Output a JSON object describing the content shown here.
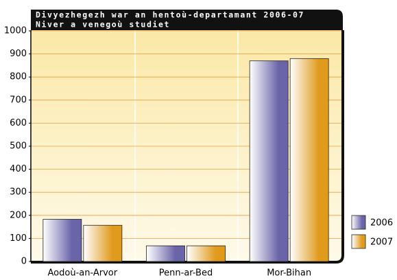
{
  "chart_data": {
    "type": "bar",
    "title": "Divyezhegezh war an hentoù-departamant 2006-07",
    "subtitle": "Niver a venegoù studiet",
    "categories": [
      "Aodoù-an-Arvor",
      "Penn-ar-Bed",
      "Mor-Bihan"
    ],
    "series": [
      {
        "name": "2006",
        "color": "#6a64a8",
        "values": [
          183,
          68,
          870
        ]
      },
      {
        "name": "2007",
        "color": "#e09a1c",
        "values": [
          157,
          68,
          880
        ]
      }
    ],
    "ylim": [
      0,
      1000
    ],
    "yticks": [
      0,
      100,
      200,
      300,
      400,
      500,
      600,
      700,
      800,
      900,
      1000
    ],
    "grid": true,
    "legend": "right"
  }
}
